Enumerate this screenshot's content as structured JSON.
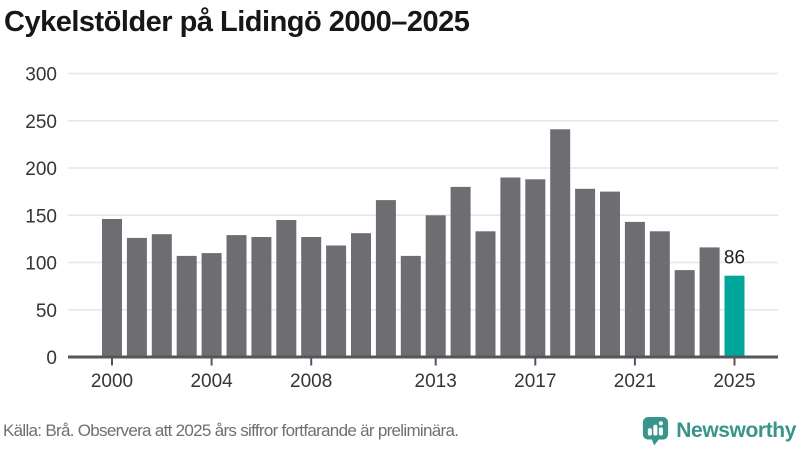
{
  "title": "Cykelstölder på Lidingö 2000–2025",
  "chart_data": {
    "type": "bar",
    "title": "Cykelstölder på Lidingö 2000–2025",
    "categories": [
      "2000",
      "2001",
      "2002",
      "2003",
      "2004",
      "2005",
      "2006",
      "2007",
      "2008",
      "2009",
      "2010",
      "2011",
      "2012",
      "2013",
      "2014",
      "2015",
      "2016",
      "2017",
      "2018",
      "2019",
      "2020",
      "2021",
      "2022",
      "2023",
      "2024",
      "2025"
    ],
    "values": [
      146,
      126,
      130,
      107,
      110,
      129,
      127,
      145,
      127,
      118,
      131,
      166,
      107,
      150,
      180,
      133,
      190,
      188,
      241,
      178,
      175,
      143,
      133,
      92,
      116,
      86
    ],
    "series_name": "Cykelstölder",
    "ylim": [
      0,
      300
    ],
    "y_ticks": [
      0,
      50,
      100,
      150,
      200,
      250,
      300
    ],
    "x_tick_labels": [
      "2000",
      "2004",
      "2008",
      "2013",
      "2017",
      "2021",
      "2025"
    ],
    "grid": true,
    "legend": false,
    "highlight": {
      "category": "2025",
      "value_label": "86"
    },
    "bar_color": "#6d6d72",
    "highlight_color": "#00a69c"
  },
  "footer": {
    "source_note": "Källa: Brå. Observera att 2025 års siffror fortfarande är preliminära.",
    "brand_name": "Newsworthy",
    "brand_icon": "speech-bubble-bar-chart-icon"
  },
  "colors": {
    "title": "#171717",
    "axis_line": "#55565a",
    "grid_line": "#e6e6e8",
    "tick_label": "#333537",
    "bar": "#6d6d72",
    "highlight": "#00a69c",
    "value_label": "#1d1d1d",
    "footer_text": "#6c7077",
    "brand": "#39948c"
  }
}
